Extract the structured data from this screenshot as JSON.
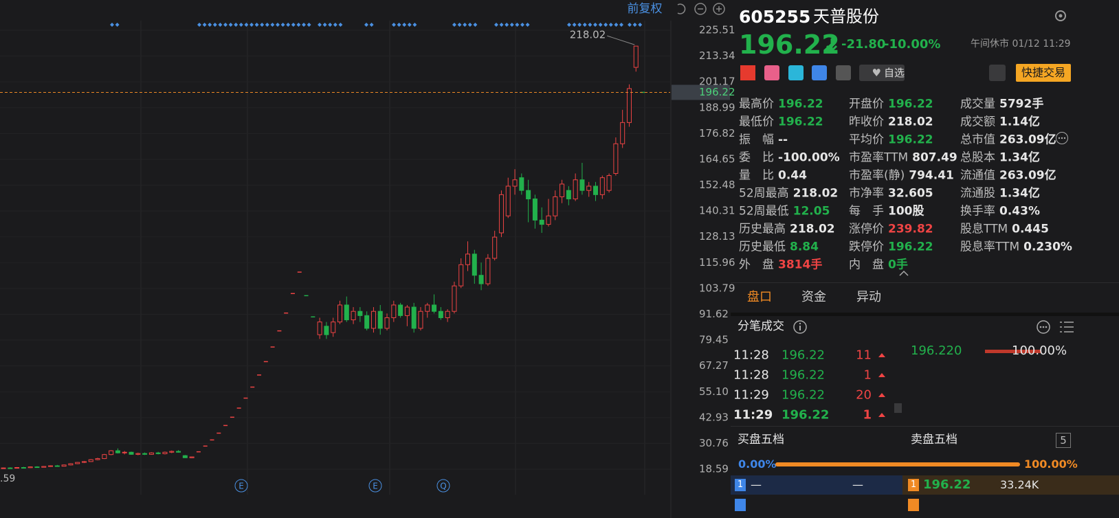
{
  "chart_data": {
    "type": "candlestick",
    "open": [
      19.0,
      19.2,
      19.1,
      19.4,
      19.3,
      19.7,
      19.5,
      19.9,
      20.2,
      20.0,
      20.6,
      21.2,
      21.8,
      22.2,
      23.1,
      23.6,
      25.5,
      27.3,
      26.3,
      26.6,
      25.6,
      26.0,
      25.6,
      26.3,
      25.9,
      26.6,
      27.0,
      25.0,
      24.0,
      26.8,
      29.5,
      32.4,
      35.6,
      39.2,
      43.1,
      47.4,
      52.1,
      57.3,
      63.0,
      69.3,
      76.2,
      83.8,
      92.2,
      101.4,
      111.5,
      100.4,
      90.4,
      82,
      86,
      83,
      88,
      96,
      89,
      93,
      91,
      85,
      93,
      85,
      90,
      96,
      91,
      95,
      85,
      93,
      96,
      93,
      90,
      93,
      105,
      115,
      120,
      110,
      106,
      118,
      130,
      138,
      152,
      156,
      150,
      146,
      136,
      134,
      138,
      147,
      150,
      146,
      155,
      150,
      152,
      148,
      150,
      158,
      172,
      182,
      208,
      196.22
    ],
    "high": [
      19.4,
      19.5,
      19.6,
      19.7,
      19.9,
      20.0,
      20.1,
      20.4,
      20.6,
      20.8,
      21.4,
      22.0,
      22.5,
      23.4,
      24.0,
      25.8,
      27.6,
      28.4,
      27.2,
      26.9,
      26.4,
      26.5,
      26.6,
      26.8,
      26.9,
      27.4,
      27.6,
      25.3,
      24.6,
      26.8,
      29.5,
      32.4,
      35.6,
      39.2,
      43.1,
      47.4,
      52.1,
      57.3,
      63.0,
      69.3,
      76.2,
      83.8,
      92.2,
      101.4,
      111.5,
      100.4,
      90.4,
      90,
      88,
      90,
      98,
      100,
      95,
      95,
      93,
      95,
      96,
      92,
      98,
      97,
      96,
      97,
      95,
      97,
      101,
      95,
      94,
      107,
      118,
      126,
      122,
      116,
      120,
      131,
      150,
      156,
      160,
      158,
      155,
      148,
      142,
      146,
      150,
      155,
      152,
      158,
      163,
      154,
      154,
      157,
      158,
      175,
      188,
      200,
      218.02,
      196.22
    ],
    "low": [
      18.8,
      19.0,
      19.0,
      19.1,
      19.2,
      19.4,
      19.4,
      19.7,
      19.9,
      19.9,
      20.4,
      21.0,
      21.5,
      22.0,
      22.8,
      23.4,
      25.2,
      26.0,
      25.6,
      25.4,
      25.2,
      25.3,
      25.4,
      25.6,
      25.6,
      26.2,
      26.4,
      23.9,
      23.8,
      26.8,
      29.5,
      32.4,
      35.6,
      39.2,
      43.1,
      47.4,
      52.1,
      57.3,
      63.0,
      69.3,
      76.2,
      83.8,
      92.2,
      101.4,
      111.5,
      100.4,
      90.4,
      80,
      80,
      81,
      87,
      88,
      87,
      88,
      84,
      83,
      82,
      84,
      88,
      90,
      86,
      83,
      84,
      90,
      92,
      89,
      88,
      92,
      104,
      112,
      106,
      103,
      105,
      117,
      128,
      137,
      148,
      148,
      135,
      132,
      130,
      133,
      136,
      144,
      143,
      145,
      148,
      147,
      145,
      146,
      149,
      157,
      170,
      180,
      206,
      196.22
    ],
    "close": [
      19.2,
      19.1,
      19.4,
      19.3,
      19.7,
      19.5,
      19.9,
      20.2,
      20.0,
      20.6,
      21.2,
      21.8,
      22.2,
      23.1,
      23.6,
      25.5,
      27.3,
      26.3,
      26.6,
      25.6,
      26.0,
      25.6,
      26.3,
      25.9,
      26.6,
      27.0,
      26.6,
      24.0,
      24.4,
      26.8,
      29.5,
      32.4,
      35.6,
      39.2,
      43.1,
      47.4,
      52.1,
      57.3,
      63.0,
      69.3,
      76.2,
      83.8,
      92.2,
      101.4,
      111.5,
      100.4,
      90.4,
      88,
      82,
      88,
      96,
      89,
      93,
      91,
      85,
      93,
      85,
      90,
      96,
      91,
      95,
      85,
      93,
      96,
      93,
      90,
      93,
      105,
      115,
      120,
      110,
      106,
      118,
      128,
      148,
      152,
      155,
      150,
      146,
      136,
      134,
      138,
      147,
      153,
      146,
      155,
      150,
      152,
      148,
      156,
      157,
      172,
      182,
      198,
      218.02,
      196.22
    ],
    "ylim": [
      6.61,
      230.04
    ],
    "yticks": [
      225.51,
      213.34,
      201.17,
      188.99,
      176.82,
      164.65,
      152.48,
      140.31,
      128.13,
      115.96,
      103.79,
      91.62,
      79.45,
      67.27,
      {
        "value": 55.1,
        "label": "55.10"
      },
      42.93,
      30.76,
      18.59
    ],
    "grid": true,
    "up_color": "#ef4444",
    "down_color": "#22b14c",
    "last_price": 196.22,
    "last_price_color": "#f08a24",
    "events": [
      "E",
      "E",
      "Q"
    ],
    "low_label": ".59",
    "adjust": "前复权"
  },
  "header": {
    "code": "605255",
    "name": "天普股份",
    "price": "196.22",
    "change": "-21.80",
    "change_pct": "-10.00%",
    "status": "午间休市 01/12 11:29",
    "watch": "自选",
    "trade": "快捷交易"
  },
  "stats": [
    [
      [
        "最高价",
        "196.22"
      ],
      [
        "开盘价",
        "196.22"
      ],
      [
        "成交量",
        "5792手"
      ]
    ],
    [
      [
        "最低价",
        "196.22"
      ],
      [
        "昨收价",
        "218.02"
      ],
      [
        "成交额",
        "1.14亿"
      ]
    ],
    [
      [
        "振　幅",
        "--"
      ],
      [
        "平均价",
        "196.22"
      ],
      [
        "总市值",
        "263.09亿"
      ]
    ],
    [
      [
        "委　比",
        "-100.00%"
      ],
      [
        "市盈率TTM",
        "807.49"
      ],
      [
        "总股本",
        "1.34亿"
      ]
    ],
    [
      [
        "量　比",
        "0.44"
      ],
      [
        "市盈率(静)",
        "794.41"
      ],
      [
        "流通值",
        "263.09亿"
      ]
    ],
    [
      [
        "52周最高",
        "218.02"
      ],
      [
        "市净率",
        "32.605"
      ],
      [
        "流通股",
        "1.34亿"
      ]
    ],
    [
      [
        "52周最低",
        "12.05"
      ],
      [
        "每　手",
        "100股"
      ],
      [
        "换手率",
        "0.43%"
      ]
    ],
    [
      [
        "历史最高",
        "218.02"
      ],
      [
        "涨停价",
        "239.82"
      ],
      [
        "股息TTM",
        "0.445"
      ]
    ],
    [
      [
        "历史最低",
        "8.84"
      ],
      [
        "跌停价",
        "196.22"
      ],
      [
        "股息率TTM",
        "0.230%"
      ]
    ],
    [
      [
        "外　盘",
        "3814手"
      ],
      [
        "内　盘",
        "0手"
      ]
    ]
  ],
  "tabs": [
    "盘口",
    "资金",
    "异动"
  ],
  "ticks_section": {
    "title": "分笔成交",
    "trades": [
      [
        "11:28",
        "196.22",
        "11"
      ],
      [
        "11:28",
        "196.22",
        "1"
      ],
      [
        "11:29",
        "196.22",
        "20"
      ],
      [
        "11:29",
        "196.22",
        "1"
      ]
    ],
    "summary_price": "196.220",
    "summary_pct": "100.00%"
  },
  "book": {
    "buy_title": "买盘五档",
    "sell_title": "卖盘五档",
    "depth": "5",
    "buy_pct": "0.00%",
    "sell_pct": "100.00%",
    "buy": [
      "1",
      "—",
      "—"
    ],
    "sell": [
      "1",
      "196.22",
      "33.24K"
    ]
  }
}
